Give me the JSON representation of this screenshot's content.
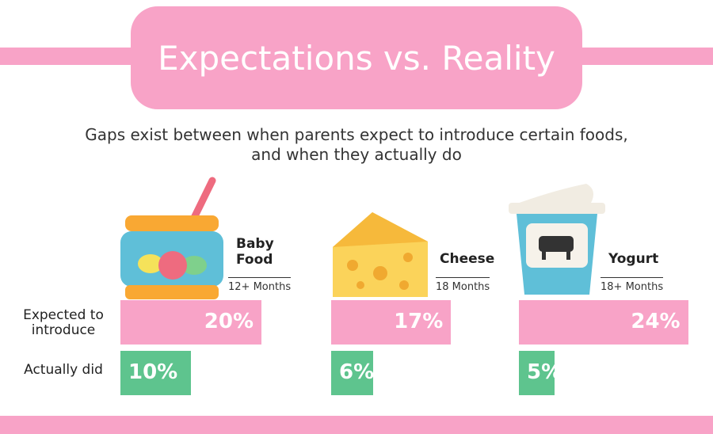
{
  "header": {
    "title": "Expectations vs. Reality",
    "subtitle": "Gaps exist between when parents expect to introduce certain foods, and when they actually do"
  },
  "row_labels": [
    "Expected to introduce",
    "Actually did"
  ],
  "items": [
    {
      "name": "Baby Food",
      "age": "12+ Months",
      "expected": 20,
      "expected_label": "20%",
      "actual": 10,
      "actual_label": "10%"
    },
    {
      "name": "Cheese",
      "age": "18 Months",
      "expected": 17,
      "expected_label": "17%",
      "actual": 6,
      "actual_label": "6%"
    },
    {
      "name": "Yogurt",
      "age": "18+ Months",
      "expected": 24,
      "expected_label": "24%",
      "actual": 5,
      "actual_label": "5%"
    }
  ],
  "colors": {
    "expected": "#f8a3c7",
    "actual": "#5ec48e"
  }
}
